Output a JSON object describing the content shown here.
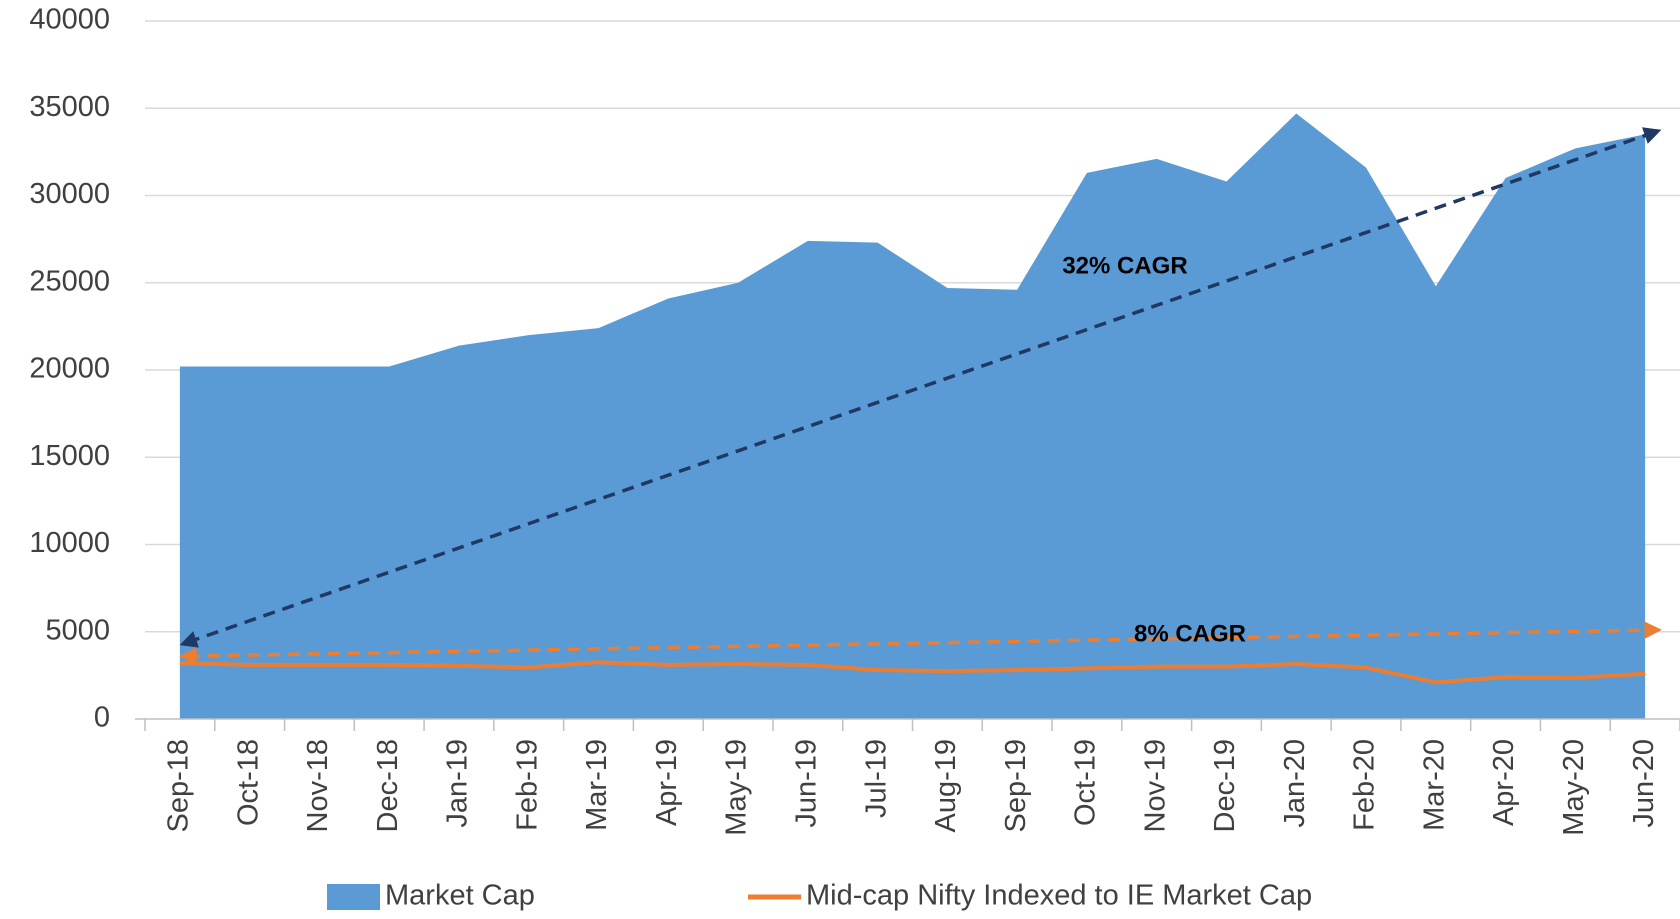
{
  "chart_data": {
    "type": "area_line",
    "categories": [
      "Sep-18",
      "Oct-18",
      "Nov-18",
      "Dec-18",
      "Jan-19",
      "Feb-19",
      "Mar-19",
      "Apr-19",
      "May-19",
      "Jun-19",
      "Jul-19",
      "Aug-19",
      "Sep-19",
      "Oct-19",
      "Nov-19",
      "Dec-19",
      "Jan-20",
      "Feb-20",
      "Mar-20",
      "Apr-20",
      "May-20",
      "Jun-20"
    ],
    "series": [
      {
        "name": "Market Cap",
        "color": "#5b9bd5",
        "kind": "area",
        "values": [
          20200,
          20200,
          20200,
          20200,
          21400,
          22000,
          22400,
          24100,
          25000,
          27400,
          27300,
          24700,
          24600,
          31300,
          32100,
          30800,
          34700,
          31600,
          24800,
          31000,
          32700,
          33500
        ]
      },
      {
        "name": "Mid-cap Nifty Indexed to IE Market Cap",
        "color": "#ed7d31",
        "kind": "line",
        "values": [
          3200,
          3100,
          3100,
          3100,
          3050,
          2950,
          3250,
          3100,
          3150,
          3100,
          2800,
          2750,
          2800,
          2900,
          3000,
          3000,
          3150,
          2950,
          2100,
          2400,
          2350,
          2600
        ]
      }
    ],
    "annotations": [
      {
        "text": "32% CAGR",
        "color": "#1f3864",
        "from": 4400,
        "to": 33600
      },
      {
        "text": "8% CAGR",
        "color": "#ed7d31",
        "from": 3600,
        "to": 5100
      }
    ],
    "ylim": [
      0,
      40000
    ],
    "yticks": [
      0,
      5000,
      10000,
      15000,
      20000,
      25000,
      30000,
      35000,
      40000
    ],
    "grid": true
  }
}
